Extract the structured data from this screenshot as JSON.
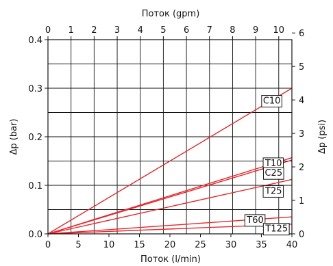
{
  "chart_data": {
    "type": "line",
    "x_label_bottom": "Поток (l/min)",
    "x_label_top": "Поток (gpm)",
    "y_label_left": "Δp (bar)",
    "y_label_right": "Δp (psi)",
    "xlim": [
      0,
      40
    ],
    "ylim": [
      0,
      0.4
    ],
    "top_xlim": [
      0,
      10.57
    ],
    "right_ylim": [
      0,
      5.8
    ],
    "x_ticks": [
      0,
      5,
      10,
      15,
      20,
      25,
      30,
      35,
      40
    ],
    "x_tick_labels": [
      "0",
      "5",
      "10",
      "15",
      "20",
      "25",
      "30",
      "35",
      "40"
    ],
    "y_ticks": [
      0.0,
      0.1,
      0.2,
      0.3,
      0.4
    ],
    "y_tick_labels": [
      "0.0",
      "0.1",
      "0.2",
      "0.3",
      "0.4"
    ],
    "top_ticks": [
      0,
      1,
      2,
      3,
      4,
      5,
      6,
      7,
      8,
      9,
      10
    ],
    "top_tick_labels": [
      "0",
      "1",
      "2",
      "3",
      "4",
      "5",
      "6",
      "7",
      "8",
      "9",
      "10"
    ],
    "right_ticks": [
      0,
      1,
      2,
      3,
      4,
      5,
      6
    ],
    "right_tick_labels": [
      "0",
      "1",
      "2",
      "3",
      "4",
      "5",
      "6"
    ],
    "grid": true,
    "line_color": "#e8262a",
    "series": [
      {
        "name": "C10",
        "x": [
          0,
          40
        ],
        "y": [
          0,
          0.3
        ]
      },
      {
        "name": "T10",
        "x": [
          0,
          40
        ],
        "y": [
          0,
          0.157
        ]
      },
      {
        "name": "C25",
        "x": [
          0,
          40
        ],
        "y": [
          0,
          0.152
        ]
      },
      {
        "name": "T25",
        "x": [
          0,
          40
        ],
        "y": [
          0,
          0.112
        ]
      },
      {
        "name": "T60",
        "x": [
          0,
          40
        ],
        "y": [
          0,
          0.035
        ]
      },
      {
        "name": "T125",
        "x": [
          0,
          40
        ],
        "y": [
          0,
          0.02
        ]
      }
    ]
  }
}
